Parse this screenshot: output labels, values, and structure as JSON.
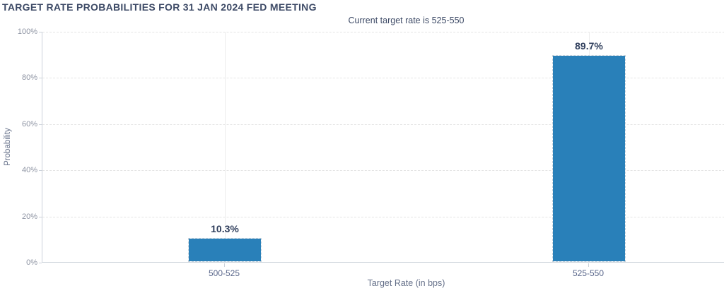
{
  "chart_data": {
    "type": "bar",
    "title": "TARGET RATE PROBABILITIES FOR 31 JAN 2024 FED MEETING",
    "subtitle": "Current target rate is 525-550",
    "categories": [
      "500-525",
      "525-550"
    ],
    "values": [
      10.3,
      89.7
    ],
    "data_labels": [
      "10.3%",
      "89.7%"
    ],
    "xlabel": "Target Rate (in bps)",
    "ylabel": "Probability",
    "ylim": [
      0,
      100
    ],
    "ytick_values": [
      0,
      20,
      40,
      60,
      80,
      100
    ],
    "ytick_labels": [
      "0%",
      "20%",
      "40%",
      "60%",
      "80%",
      "100%"
    ],
    "grid": true,
    "legend": "none"
  },
  "colors": {
    "bar": "#2980b9",
    "bar_border": "#c9d4dd",
    "title_text": "#3d4a66",
    "data_label_text": "#2f3e5c",
    "category_text": "#5b688c",
    "ytick_text": "#8e94a3",
    "axis_title_text": "#66718a",
    "gridline": "#e4e4e4",
    "axis_line": "#ccd2da"
  }
}
